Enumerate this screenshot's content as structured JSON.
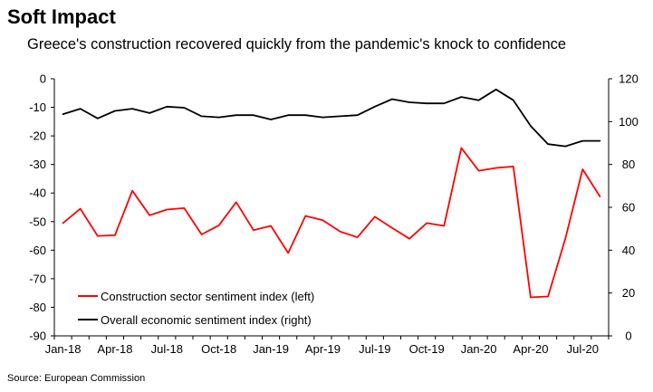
{
  "header": {
    "title": "Soft Impact",
    "subtitle": "Greece's construction recovered quickly from the pandemic's knock to confidence"
  },
  "footer": {
    "source": "Source: European Commission"
  },
  "colors": {
    "construction": "#ff0000",
    "overall": "#000000"
  },
  "chart_data": {
    "type": "line",
    "title": "Soft Impact",
    "subtitle": "Greece's construction recovered quickly from the pandemic's knock to confidence",
    "x_labels": [
      "Jan-18",
      "Feb-18",
      "Mar-18",
      "Apr-18",
      "May-18",
      "Jun-18",
      "Jul-18",
      "Aug-18",
      "Sep-18",
      "Oct-18",
      "Nov-18",
      "Dec-18",
      "Jan-19",
      "Feb-19",
      "Mar-19",
      "Apr-19",
      "May-19",
      "Jun-19",
      "Jul-19",
      "Aug-19",
      "Sep-19",
      "Oct-19",
      "Nov-19",
      "Dec-19",
      "Jan-20",
      "Feb-20",
      "Mar-20",
      "Apr-20",
      "May-20",
      "Jun-20",
      "Jul-20",
      "Aug-20"
    ],
    "x_tick_labels": [
      "Jan-18",
      "Apr-18",
      "Jul-18",
      "Oct-18",
      "Jan-19",
      "Apr-19",
      "Jul-19",
      "Oct-19",
      "Jan-20",
      "Apr-20",
      "Jul-20"
    ],
    "left_axis": {
      "ylim": [
        -90,
        0
      ],
      "ticks": [
        0,
        -10,
        -20,
        -30,
        -40,
        -50,
        -60,
        -70,
        -80,
        -90
      ]
    },
    "right_axis": {
      "ylim": [
        0,
        120
      ],
      "ticks": [
        0,
        20,
        40,
        60,
        80,
        100,
        120
      ]
    },
    "legend_position": "bottom-left",
    "grid": false,
    "series": [
      {
        "name": "Construction sector sentiment index (left)",
        "axis": "left",
        "color": "#ff0000",
        "values": [
          -50.5,
          -45.5,
          -55,
          -54.8,
          -39.2,
          -47.8,
          -45.8,
          -45.3,
          -54.5,
          -51.3,
          -43.2,
          -53,
          -51.5,
          -61,
          -48,
          -49.5,
          -53.5,
          -55.5,
          -48.3,
          -52.2,
          -56,
          -50.5,
          -51.5,
          -24.2,
          -32.2,
          -31.2,
          -30.7,
          -76.5,
          -76.2,
          -56,
          -31.7,
          -41.2
        ]
      },
      {
        "name": "Overall economic sentiment index (right)",
        "axis": "right",
        "color": "#000000",
        "values": [
          103.5,
          106,
          101.5,
          105,
          106,
          104,
          107,
          106.5,
          102.5,
          102,
          103,
          103,
          101,
          103,
          103,
          102,
          102.5,
          103,
          107,
          110.5,
          109,
          108.5,
          108.5,
          111.5,
          110,
          115,
          110,
          98,
          89.5,
          88.5,
          91,
          91
        ]
      }
    ]
  }
}
